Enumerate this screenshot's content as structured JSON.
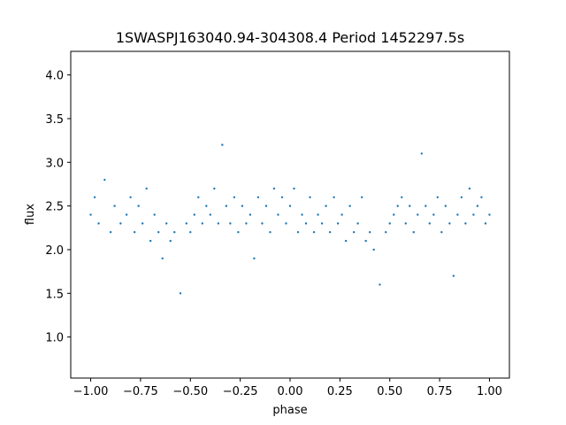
{
  "chart_data": {
    "type": "scatter",
    "title": "1SWASPJ163040.94-304308.4 Period 1452297.5s",
    "xlabel": "phase",
    "ylabel": "flux",
    "xlim": [
      -1.1,
      1.1
    ],
    "ylim": [
      0.53,
      4.27
    ],
    "x_ticks": [
      -1.0,
      -0.75,
      -0.5,
      -0.25,
      0.0,
      0.25,
      0.5,
      0.75,
      1.0
    ],
    "x_tick_labels": [
      "−1.00",
      "−0.75",
      "−0.50",
      "−0.25",
      "0.00",
      "0.25",
      "0.50",
      "0.75",
      "1.00"
    ],
    "y_ticks": [
      1.0,
      1.5,
      2.0,
      2.5,
      3.0,
      3.5,
      4.0
    ],
    "y_tick_labels": [
      "1.0",
      "1.5",
      "2.0",
      "2.5",
      "3.0",
      "3.5",
      "4.0"
    ],
    "grid": false,
    "legend": "none",
    "marker_color": "#1f77b4",
    "series": [
      {
        "x": [
          -1.0,
          -0.98,
          -0.96,
          -0.93,
          -0.9,
          -0.88,
          -0.85,
          -0.82,
          -0.8,
          -0.78,
          -0.76,
          -0.74,
          -0.72,
          -0.7,
          -0.68,
          -0.66,
          -0.64,
          -0.62,
          -0.6,
          -0.58,
          -0.55,
          -0.52,
          -0.5,
          -0.48,
          -0.46,
          -0.44,
          -0.42,
          -0.4,
          -0.38,
          -0.36,
          -0.34,
          -0.32,
          -0.3,
          -0.28,
          -0.26,
          -0.24,
          -0.22,
          -0.2,
          -0.18,
          -0.16,
          -0.14,
          -0.12,
          -0.1,
          -0.08,
          -0.06,
          -0.04,
          -0.02,
          0.0,
          0.02,
          0.04,
          0.06,
          0.08,
          0.1,
          0.12,
          0.14,
          0.16,
          0.18,
          0.2,
          0.22,
          0.24,
          0.26,
          0.28,
          0.3,
          0.32,
          0.34,
          0.36,
          0.38,
          0.4,
          0.42,
          0.45,
          0.48,
          0.5,
          0.52,
          0.54,
          0.56,
          0.58,
          0.6,
          0.62,
          0.64,
          0.66,
          0.68,
          0.7,
          0.72,
          0.74,
          0.76,
          0.78,
          0.8,
          0.82,
          0.84,
          0.86,
          0.88,
          0.9,
          0.92,
          0.94,
          0.96,
          0.98,
          1.0
        ],
        "y": [
          2.4,
          2.6,
          2.3,
          2.8,
          2.2,
          2.5,
          2.3,
          2.4,
          2.6,
          2.2,
          2.5,
          2.3,
          2.7,
          2.1,
          2.4,
          2.2,
          1.9,
          2.3,
          2.1,
          2.2,
          1.5,
          2.3,
          2.2,
          2.4,
          2.6,
          2.3,
          2.5,
          2.4,
          2.7,
          2.3,
          3.2,
          2.5,
          2.3,
          2.6,
          2.2,
          2.5,
          2.3,
          2.4,
          1.9,
          2.6,
          2.3,
          2.5,
          2.2,
          2.7,
          2.4,
          2.6,
          2.3,
          2.5,
          2.7,
          2.2,
          2.4,
          2.3,
          2.6,
          2.2,
          2.4,
          2.3,
          2.5,
          2.2,
          2.6,
          2.3,
          2.4,
          2.1,
          2.5,
          2.2,
          2.3,
          2.6,
          2.1,
          2.2,
          2.0,
          1.6,
          2.2,
          2.3,
          2.4,
          2.5,
          2.6,
          2.3,
          2.5,
          2.2,
          2.4,
          3.1,
          2.5,
          2.3,
          2.4,
          2.6,
          2.2,
          2.5,
          2.3,
          1.7,
          2.4,
          2.6,
          2.3,
          2.7,
          2.4,
          2.5,
          2.6,
          2.3,
          2.4
        ]
      }
    ]
  }
}
